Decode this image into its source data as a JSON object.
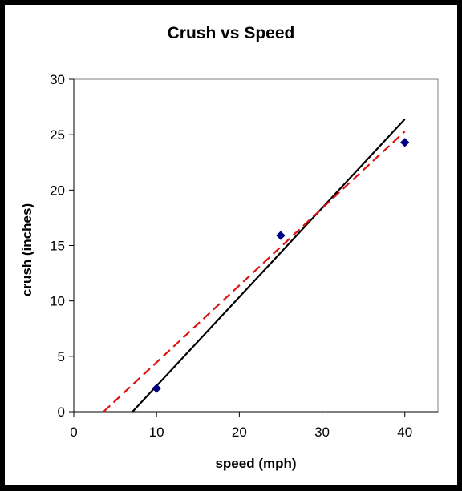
{
  "chart_data": {
    "type": "scatter",
    "title": "Crush vs Speed",
    "xlabel": "speed (mph)",
    "ylabel": "crush (inches)",
    "xlim": [
      0,
      44
    ],
    "ylim": [
      0,
      30
    ],
    "xticks": [
      0,
      10,
      20,
      30,
      40
    ],
    "yticks": [
      0,
      5,
      10,
      15,
      20,
      25,
      30
    ],
    "grid": false,
    "legend": "none",
    "series": [
      {
        "kind": "points",
        "marker": "diamond",
        "color": "#000080",
        "x": [
          10,
          25,
          40
        ],
        "y": [
          2.1,
          15.9,
          24.3
        ]
      },
      {
        "kind": "line",
        "style": "solid",
        "color": "#000000",
        "x": [
          7.1,
          40
        ],
        "y": [
          0,
          26.4
        ]
      },
      {
        "kind": "line",
        "style": "dashed",
        "color": "#dd1111",
        "x": [
          3.6,
          40
        ],
        "y": [
          0,
          25.3
        ]
      }
    ]
  }
}
